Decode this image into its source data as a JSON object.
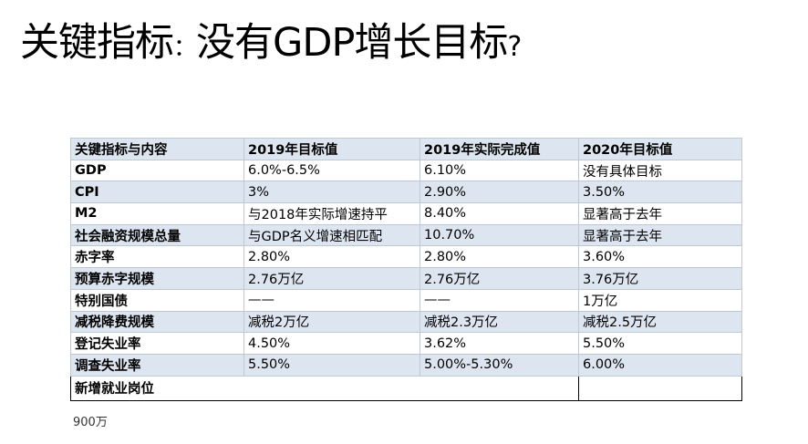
{
  "title": {
    "main": "关键指标",
    "colon": "：",
    "sub": "没有GDP增长目标",
    "question": "?"
  },
  "table": {
    "headers": [
      "关键指标与内容",
      "2019年目标值",
      "2019年实际完成值",
      "2020年目标值"
    ],
    "rows": [
      [
        "GDP",
        "6.0%-6.5%",
        "6.10%",
        "没有具体目标"
      ],
      [
        "CPI",
        "3%",
        "2.90%",
        "3.50%"
      ],
      [
        "M2",
        "与2018年实际增速持平",
        "8.40%",
        "显著高于去年"
      ],
      [
        "社会融资规模总量",
        "与GDP名义增速相匹配",
        "10.70%",
        "显著高于去年"
      ],
      [
        "赤字率",
        "2.80%",
        "2.80%",
        "3.60%"
      ],
      [
        "预算赤字规模",
        "2.76万亿",
        "2.76万亿",
        "3.76万亿"
      ],
      [
        "特别国债",
        "——",
        "——",
        "1万亿"
      ],
      [
        "减税降费规模",
        "减税2万亿",
        "减税2.3万亿",
        "减税2.5万亿"
      ],
      [
        "登记失业率",
        "4.50%",
        "3.62%",
        "5.50%"
      ],
      [
        "调查失业率",
        "5.50%",
        "5.00%-5.30%",
        "6.00%"
      ]
    ],
    "last_row": {
      "label": "新增就业岗位",
      "value": ""
    }
  },
  "note": "900万"
}
